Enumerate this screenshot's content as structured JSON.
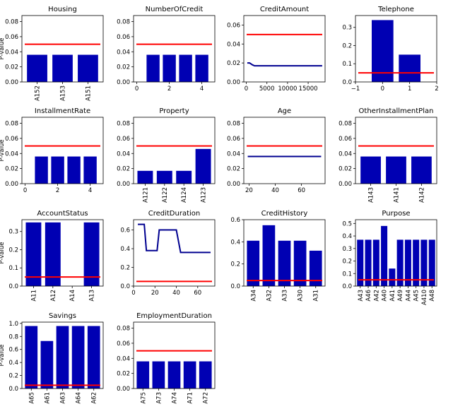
{
  "colors": {
    "bar": "#0000b3",
    "line": "#000090",
    "threshold": "#ff0000"
  },
  "chart_data": [
    {
      "title": "Housing",
      "type": "bar",
      "ylabel": "P-value",
      "categories": [
        "A152",
        "A153",
        "A151"
      ],
      "values": [
        0.036,
        0.036,
        0.036
      ],
      "threshold": 0.05,
      "ylim": [
        0,
        0.088
      ],
      "yticks": [
        "0.00",
        "0.02",
        "0.04",
        "0.06",
        "0.08"
      ],
      "ytick_values": [
        0,
        0.02,
        0.04,
        0.06,
        0.08
      ]
    },
    {
      "title": "NumberOfCredit",
      "type": "bar",
      "x": [
        1,
        2,
        3,
        4
      ],
      "values": [
        0.036,
        0.036,
        0.036,
        0.036
      ],
      "threshold": 0.05,
      "ylim": [
        0,
        0.088
      ],
      "xlim": [
        -0.2,
        4.8
      ],
      "xticks": [
        "0",
        "2",
        "4"
      ],
      "xtick_values": [
        0,
        2,
        4
      ],
      "yticks": [
        "0.00",
        "0.02",
        "0.04",
        "0.06",
        "0.08"
      ],
      "ytick_values": [
        0,
        0.02,
        0.04,
        0.06,
        0.08
      ]
    },
    {
      "title": "CreditAmount",
      "type": "line",
      "x": [
        250,
        800,
        1500,
        2000,
        18400
      ],
      "y": [
        0.02,
        0.02,
        0.018,
        0.017,
        0.017
      ],
      "threshold": 0.05,
      "ylim": [
        0,
        0.07
      ],
      "xlim": [
        -600,
        19100
      ],
      "xticks": [
        "0",
        "5000",
        "10000",
        "15000"
      ],
      "xtick_values": [
        0,
        5000,
        10000,
        15000
      ],
      "yticks": [
        "0.00",
        "0.02",
        "0.04",
        "0.06"
      ],
      "ytick_values": [
        0,
        0.02,
        0.04,
        0.06
      ]
    },
    {
      "title": "Telephone",
      "type": "bar",
      "x": [
        0,
        1
      ],
      "values": [
        0.34,
        0.15
      ],
      "threshold": 0.05,
      "ylim": [
        0,
        0.365
      ],
      "xlim": [
        -1,
        2
      ],
      "xticks": [
        "−1",
        "0",
        "1",
        "2"
      ],
      "xtick_values": [
        -1,
        0,
        1,
        2
      ],
      "yticks": [
        "0.0",
        "0.1",
        "0.2",
        "0.3"
      ],
      "ytick_values": [
        0,
        0.1,
        0.2,
        0.3
      ]
    },
    {
      "title": "InstallmentRate",
      "type": "bar",
      "ylabel": "P-value",
      "x": [
        1,
        2,
        3,
        4
      ],
      "values": [
        0.036,
        0.036,
        0.036,
        0.036
      ],
      "threshold": 0.05,
      "ylim": [
        0,
        0.088
      ],
      "xlim": [
        -0.2,
        4.8
      ],
      "xticks": [
        "0",
        "2",
        "4"
      ],
      "xtick_values": [
        0,
        2,
        4
      ],
      "yticks": [
        "0.00",
        "0.02",
        "0.04",
        "0.06",
        "0.08"
      ],
      "ytick_values": [
        0,
        0.02,
        0.04,
        0.06,
        0.08
      ]
    },
    {
      "title": "Property",
      "type": "bar",
      "categories": [
        "A121",
        "A122",
        "A124",
        "A123"
      ],
      "values": [
        0.017,
        0.017,
        0.017,
        0.046
      ],
      "threshold": 0.05,
      "ylim": [
        0,
        0.088
      ],
      "yticks": [
        "0.00",
        "0.02",
        "0.04",
        "0.06",
        "0.08"
      ],
      "ytick_values": [
        0,
        0.02,
        0.04,
        0.06,
        0.08
      ]
    },
    {
      "title": "Age",
      "type": "line",
      "x": [
        19,
        75
      ],
      "y": [
        0.036,
        0.036
      ],
      "threshold": 0.05,
      "ylim": [
        0,
        0.088
      ],
      "xlim": [
        16,
        78
      ],
      "xticks": [
        "20",
        "40",
        "60"
      ],
      "xtick_values": [
        20,
        40,
        60
      ],
      "yticks": [
        "0.00",
        "0.02",
        "0.04",
        "0.06",
        "0.08"
      ],
      "ytick_values": [
        0,
        0.02,
        0.04,
        0.06,
        0.08
      ]
    },
    {
      "title": "OtherInstallmentPlan",
      "type": "bar",
      "categories": [
        "A143",
        "A141",
        "A142"
      ],
      "values": [
        0.036,
        0.036,
        0.036
      ],
      "threshold": 0.05,
      "ylim": [
        0,
        0.088
      ],
      "yticks": [
        "0.00",
        "0.02",
        "0.04",
        "0.06",
        "0.08"
      ],
      "ytick_values": [
        0,
        0.02,
        0.04,
        0.06,
        0.08
      ]
    },
    {
      "title": "AccountStatus",
      "type": "bar",
      "ylabel": "P-value",
      "categories": [
        "A11",
        "A12",
        "A14",
        "A13"
      ],
      "values": [
        0.35,
        0.35,
        0.0,
        0.35
      ],
      "threshold": 0.05,
      "ylim": [
        0,
        0.365
      ],
      "yticks": [
        "0.0",
        "0.1",
        "0.2",
        "0.3"
      ],
      "ytick_values": [
        0,
        0.1,
        0.2,
        0.3
      ]
    },
    {
      "title": "CreditDuration",
      "type": "line",
      "x": [
        4,
        10,
        12,
        16,
        22,
        24,
        40,
        44,
        72
      ],
      "y": [
        0.66,
        0.66,
        0.38,
        0.38,
        0.38,
        0.6,
        0.6,
        0.36,
        0.36
      ],
      "threshold": 0.05,
      "ylim": [
        0,
        0.71
      ],
      "xlim": [
        0,
        76
      ],
      "xticks": [
        "0",
        "20",
        "40",
        "60"
      ],
      "xtick_values": [
        0,
        20,
        40,
        60
      ],
      "yticks": [
        "0.0",
        "0.2",
        "0.4",
        "0.6"
      ],
      "ytick_values": [
        0,
        0.2,
        0.4,
        0.6
      ]
    },
    {
      "title": "CreditHistory",
      "type": "bar",
      "categories": [
        "A34",
        "A32",
        "A33",
        "A30",
        "A31"
      ],
      "values": [
        0.41,
        0.55,
        0.41,
        0.41,
        0.32
      ],
      "threshold": 0.05,
      "ylim": [
        0,
        0.6
      ],
      "yticks": [
        "0.0",
        "0.2",
        "0.4",
        "0.6"
      ],
      "ytick_values": [
        0,
        0.2,
        0.4,
        0.6
      ]
    },
    {
      "title": "Purpose",
      "type": "bar",
      "categories": [
        "A43",
        "A46",
        "A42",
        "A40",
        "A41",
        "A49",
        "A44",
        "A45",
        "A410",
        "A48"
      ],
      "values": [
        0.37,
        0.37,
        0.37,
        0.48,
        0.14,
        0.37,
        0.37,
        0.37,
        0.37,
        0.37
      ],
      "threshold": 0.05,
      "ylim": [
        0,
        0.53
      ],
      "yticks": [
        "0.0",
        "0.1",
        "0.2",
        "0.3",
        "0.4",
        "0.5"
      ],
      "ytick_values": [
        0,
        0.1,
        0.2,
        0.3,
        0.4,
        0.5
      ]
    },
    {
      "title": "Savings",
      "type": "bar",
      "ylabel": "P-value",
      "categories": [
        "A65",
        "A61",
        "A63",
        "A64",
        "A62"
      ],
      "values": [
        0.96,
        0.73,
        0.96,
        0.96,
        0.96
      ],
      "threshold": 0.05,
      "ylim": [
        0,
        1.02
      ],
      "yticks": [
        "0.0",
        "0.2",
        "0.4",
        "0.6",
        "0.8",
        "1.0"
      ],
      "ytick_values": [
        0,
        0.2,
        0.4,
        0.6,
        0.8,
        1.0
      ]
    },
    {
      "title": "EmploymentDuration",
      "type": "bar",
      "categories": [
        "A75",
        "A73",
        "A74",
        "A71",
        "A72"
      ],
      "values": [
        0.036,
        0.036,
        0.036,
        0.036,
        0.036
      ],
      "threshold": 0.05,
      "ylim": [
        0,
        0.088
      ],
      "yticks": [
        "0.00",
        "0.02",
        "0.04",
        "0.06",
        "0.08"
      ],
      "ytick_values": [
        0,
        0.02,
        0.04,
        0.06,
        0.08
      ]
    }
  ]
}
